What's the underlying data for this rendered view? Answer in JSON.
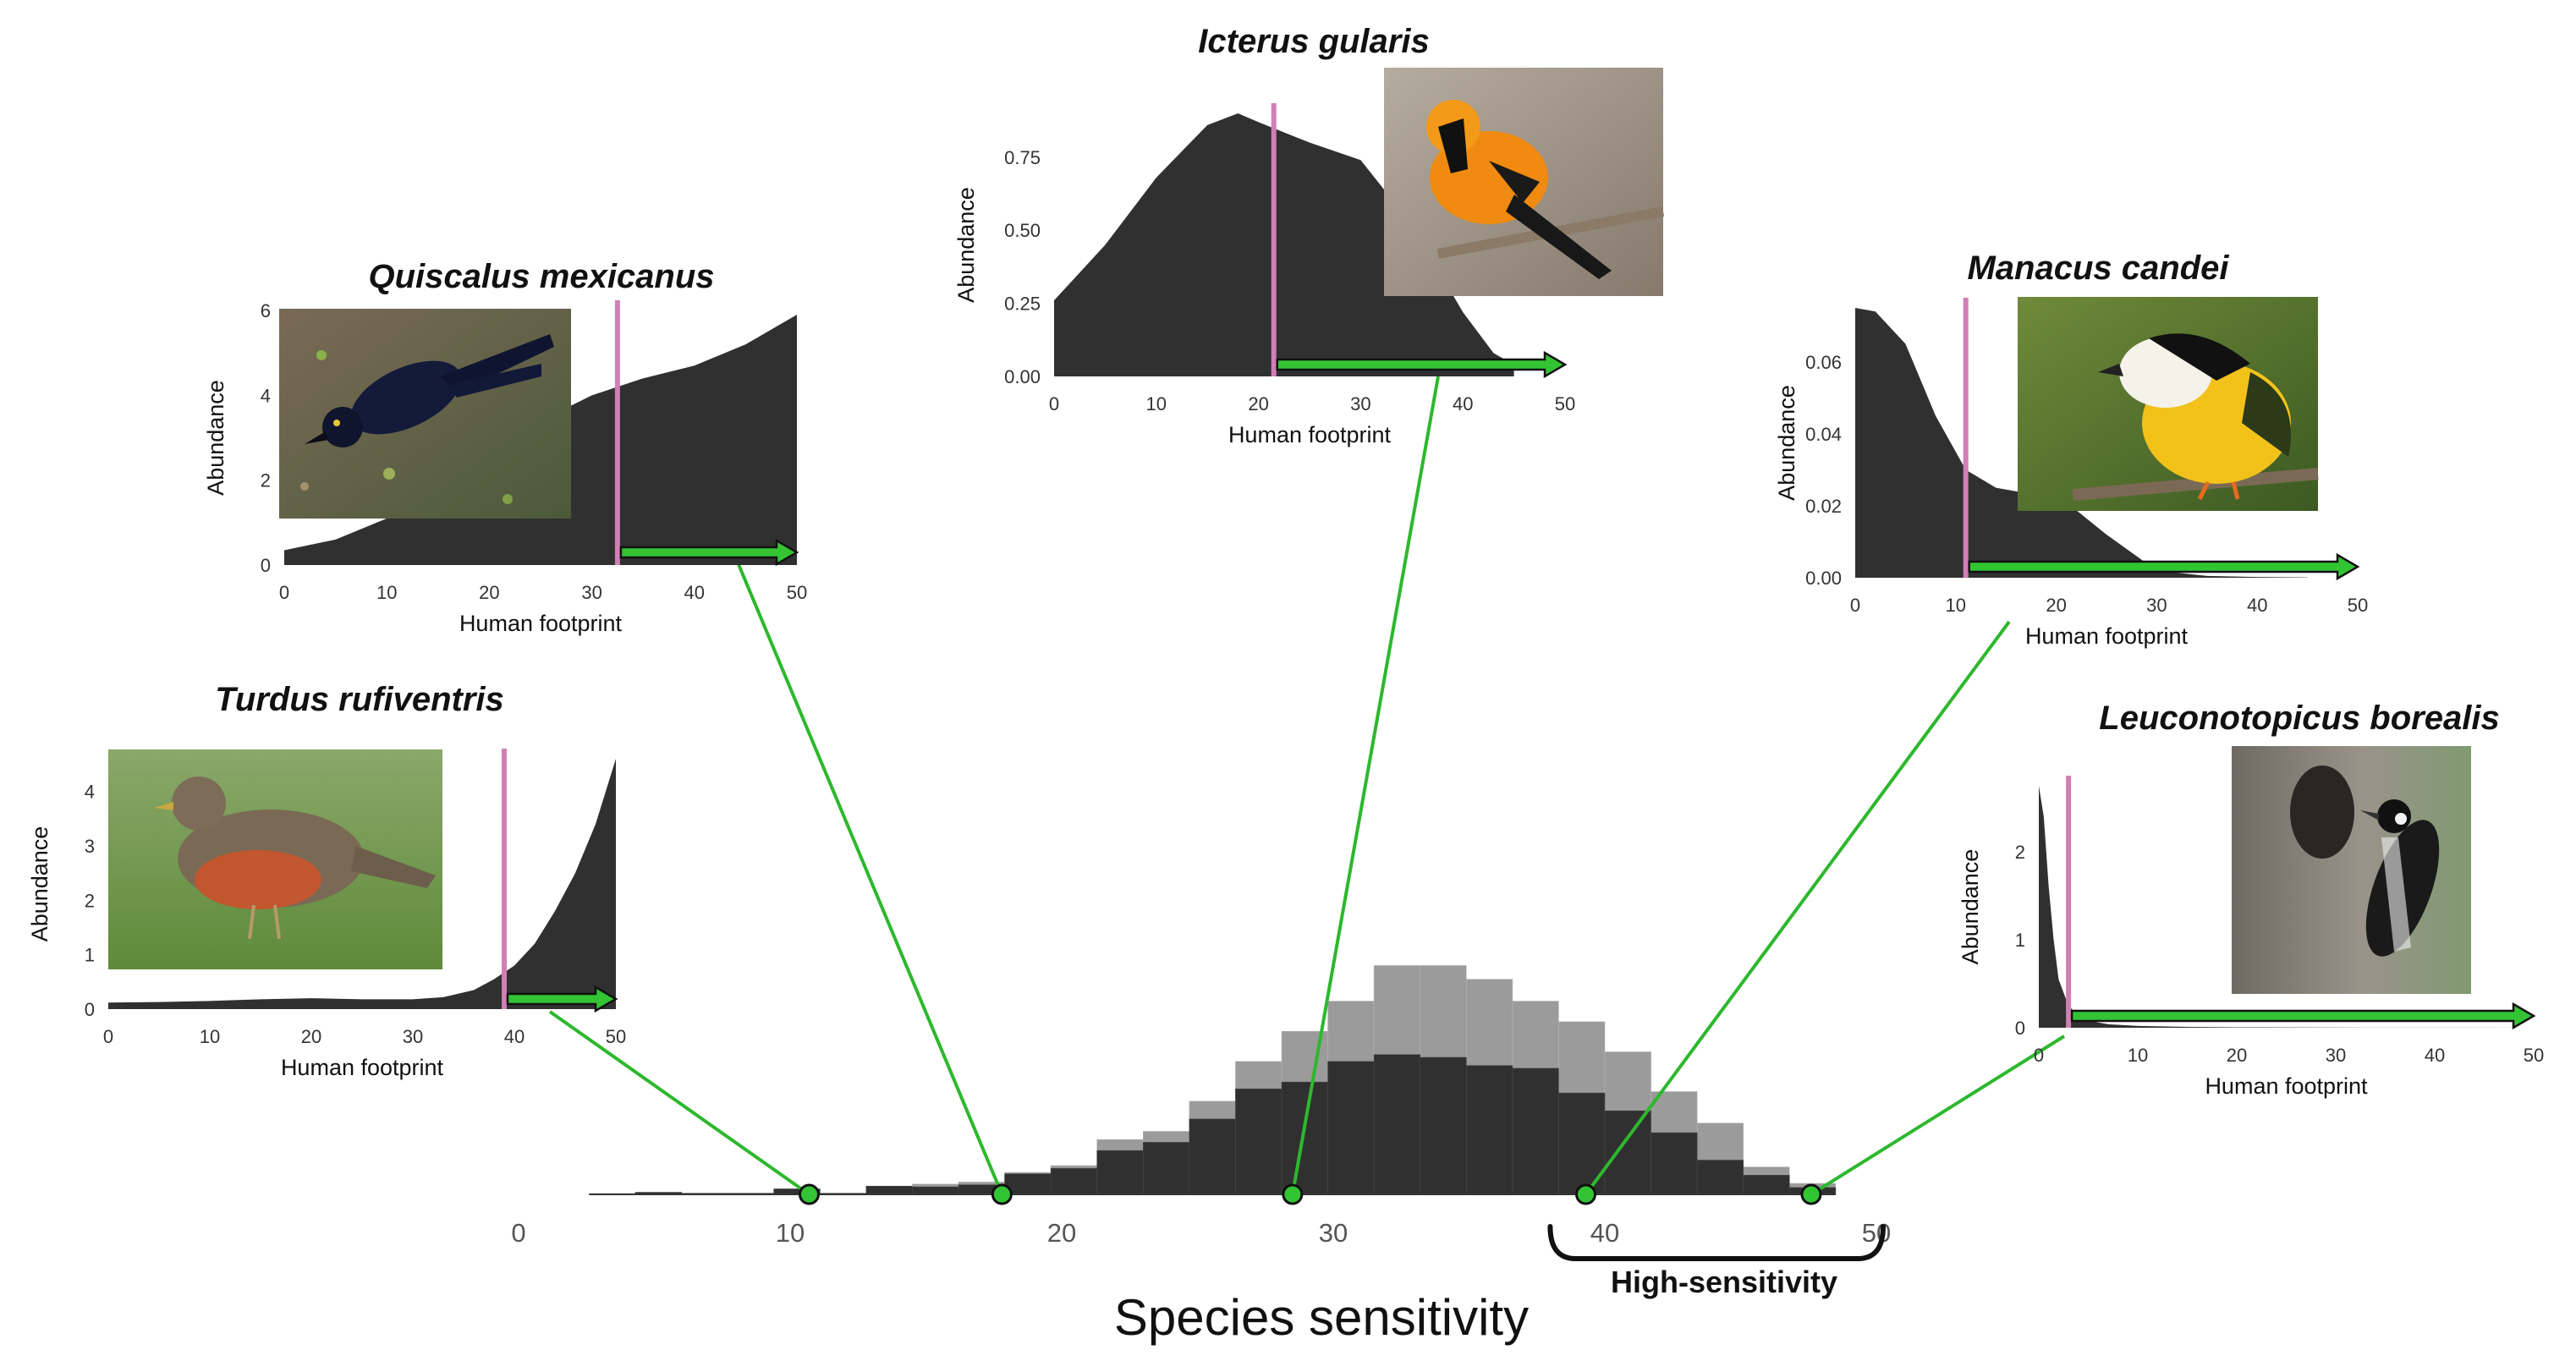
{
  "figure": {
    "main_xlabel": "Species sensitivity",
    "high_label": "High-sensitivity"
  },
  "chart_data": [
    {
      "type": "bar",
      "role": "main-histogram",
      "xlabel": "Species sensitivity",
      "xticks": [
        0,
        10,
        20,
        30,
        40,
        50
      ],
      "xlim": [
        0,
        50
      ],
      "bin_width": 1.7,
      "bin_edges": [
        2.6,
        4.3,
        6.0,
        7.7,
        9.4,
        11.1,
        12.8,
        14.5,
        16.2,
        17.9,
        19.6,
        21.3,
        23.0,
        24.7,
        26.4,
        28.1,
        29.8,
        31.5,
        33.2,
        34.9,
        36.6,
        38.3,
        40.0,
        41.7,
        43.4,
        45.1,
        46.8,
        48.5
      ],
      "series": [
        {
          "values": [
            0.5,
            1.5,
            0.8,
            0.8,
            4,
            0.8,
            6,
            5.5,
            7,
            15,
            19,
            32,
            38,
            55,
            77,
            82,
            97,
            102,
            100,
            94,
            92,
            74,
            61,
            45,
            25,
            14,
            5
          ]
        },
        {
          "values": [
            0.5,
            1.5,
            0.8,
            0.8,
            4,
            0.8,
            6,
            7.5,
            9,
            16,
            21,
            40,
            46,
            68,
            97,
            119,
            141,
            167,
            167,
            157,
            141,
            126,
            104,
            75,
            52,
            20,
            8
          ]
        }
      ],
      "high_sensitivity_range": [
        38.3,
        50
      ],
      "markers": [
        10.7,
        17.8,
        28.5,
        39.3,
        47.6
      ]
    },
    {
      "type": "area",
      "species": "Turdus rufiventris",
      "xlabel": "Human footprint",
      "ylabel": "Abundance",
      "xticks": [
        0,
        10,
        20,
        30,
        40,
        50
      ],
      "yticks": [
        "0",
        "1",
        "2",
        "3",
        "4"
      ],
      "xlim": [
        0,
        50
      ],
      "ylim": [
        0,
        4.6
      ],
      "threshold": 39,
      "arrow_to": 50,
      "x": [
        0,
        5,
        10,
        15,
        20,
        25,
        30,
        33,
        36,
        38,
        40,
        42,
        44,
        46,
        48,
        50
      ],
      "y": [
        0.12,
        0.13,
        0.15,
        0.18,
        0.2,
        0.18,
        0.18,
        0.22,
        0.35,
        0.55,
        0.8,
        1.2,
        1.8,
        2.5,
        3.4,
        4.6
      ]
    },
    {
      "type": "area",
      "species": "Quiscalus mexicanus",
      "xlabel": "Human footprint",
      "ylabel": "Abundance",
      "xticks": [
        0,
        10,
        20,
        30,
        40,
        50
      ],
      "yticks": [
        "0",
        "2",
        "4",
        "6"
      ],
      "xlim": [
        0,
        50
      ],
      "ylim": [
        0,
        6
      ],
      "threshold": 32.5,
      "arrow_to": 50,
      "x": [
        0,
        5,
        10,
        15,
        20,
        25,
        30,
        35,
        40,
        45,
        50
      ],
      "y": [
        0.35,
        0.6,
        1.1,
        1.8,
        2.6,
        3.4,
        4.0,
        4.4,
        4.7,
        5.2,
        5.9
      ]
    },
    {
      "type": "area",
      "species": "Icterus gularis",
      "xlabel": "Human footprint",
      "ylabel": "Abundance",
      "xticks": [
        0,
        10,
        20,
        30,
        40,
        50
      ],
      "yticks": [
        "0.00",
        "0.25",
        "0.50",
        "0.75"
      ],
      "xlim": [
        0,
        50
      ],
      "ylim": [
        0,
        0.9
      ],
      "threshold": 21.5,
      "arrow_to": 50,
      "x": [
        0,
        5,
        10,
        15,
        18,
        20,
        25,
        30,
        35,
        40,
        43,
        45
      ],
      "y": [
        0.26,
        0.45,
        0.68,
        0.86,
        0.9,
        0.87,
        0.8,
        0.74,
        0.52,
        0.22,
        0.08,
        0.04
      ]
    },
    {
      "type": "area",
      "species": "Manacus candei",
      "xlabel": "Human footprint",
      "ylabel": "Abundance",
      "xticks": [
        0,
        10,
        20,
        30,
        40,
        50
      ],
      "yticks": [
        "0.00",
        "0.02",
        "0.04",
        "0.06"
      ],
      "xlim": [
        0,
        50
      ],
      "ylim": [
        0,
        0.075
      ],
      "threshold": 11,
      "arrow_to": 50,
      "x": [
        0,
        2,
        5,
        8,
        11,
        14,
        18,
        21,
        25,
        30,
        35,
        40,
        45
      ],
      "y": [
        0.075,
        0.074,
        0.065,
        0.045,
        0.03,
        0.025,
        0.023,
        0.021,
        0.012,
        0.002,
        0.0005,
        0.0002,
        0.0001
      ]
    },
    {
      "type": "area",
      "species": "Leuconotopicus borealis",
      "xlabel": "Human footprint",
      "ylabel": "Abundance",
      "xticks": [
        0,
        10,
        20,
        30,
        40,
        50
      ],
      "yticks": [
        "0",
        "1",
        "2"
      ],
      "xlim": [
        0,
        50
      ],
      "ylim": [
        0,
        2.75
      ],
      "threshold": 3,
      "arrow_to": 50,
      "x": [
        0,
        0.5,
        1,
        1.5,
        2,
        3,
        4,
        5,
        7,
        10,
        15,
        20,
        30,
        40,
        50
      ],
      "y": [
        2.75,
        2.4,
        1.6,
        1.0,
        0.55,
        0.25,
        0.14,
        0.08,
        0.04,
        0.02,
        0.01,
        0.005,
        0.002,
        0.001,
        0.0005
      ]
    }
  ],
  "colors": {
    "dark": "#303030",
    "light": "#9b9b9b",
    "green": "#2db82d",
    "pink": "#d17fb4",
    "arrow_fill": "#33c433"
  },
  "photos": [
    {
      "icon": "bird-photo-turdus-rufiventris"
    },
    {
      "icon": "bird-photo-quiscalus-mexicanus"
    },
    {
      "icon": "bird-photo-icterus-gularis"
    },
    {
      "icon": "bird-photo-manacus-candei"
    },
    {
      "icon": "bird-photo-leuconotopicus-borealis"
    }
  ]
}
